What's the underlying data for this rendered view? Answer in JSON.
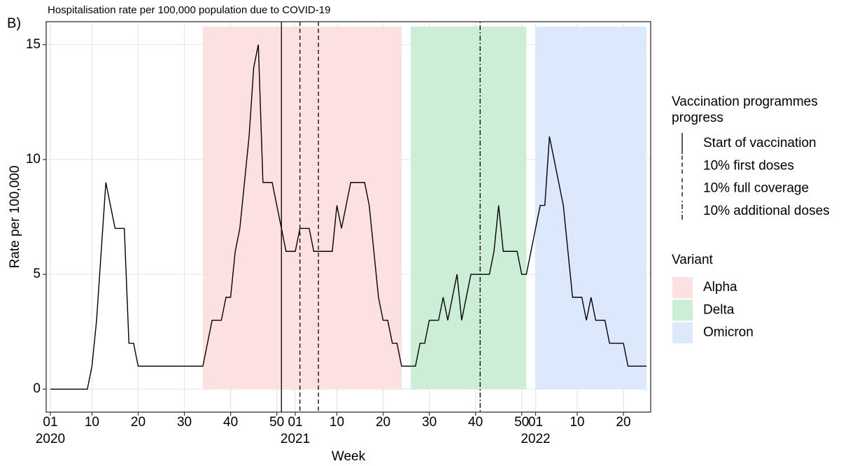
{
  "panel_label": "B)",
  "chart_data": {
    "type": "line",
    "title": "Hospitalisation rate per 100,000 population due to COVID-19",
    "x_label": "Week",
    "y_label": "Rate per 100,000",
    "color": "#000000",
    "x": [
      "2020-01",
      "2020-02",
      "2020-03",
      "2020-04",
      "2020-05",
      "2020-06",
      "2020-07",
      "2020-08",
      "2020-09",
      "2020-10",
      "2020-11",
      "2020-12",
      "2020-13",
      "2020-14",
      "2020-15",
      "2020-16",
      "2020-17",
      "2020-18",
      "2020-19",
      "2020-20",
      "2020-21",
      "2020-22",
      "2020-23",
      "2020-24",
      "2020-25",
      "2020-26",
      "2020-27",
      "2020-28",
      "2020-29",
      "2020-30",
      "2020-31",
      "2020-32",
      "2020-33",
      "2020-34",
      "2020-35",
      "2020-36",
      "2020-37",
      "2020-38",
      "2020-39",
      "2020-40",
      "2020-41",
      "2020-42",
      "2020-43",
      "2020-44",
      "2020-45",
      "2020-46",
      "2020-47",
      "2020-48",
      "2020-49",
      "2020-50",
      "2020-51",
      "2020-52",
      "2020-53",
      "2021-01",
      "2021-02",
      "2021-03",
      "2021-04",
      "2021-05",
      "2021-06",
      "2021-07",
      "2021-08",
      "2021-09",
      "2021-10",
      "2021-11",
      "2021-12",
      "2021-13",
      "2021-14",
      "2021-15",
      "2021-16",
      "2021-17",
      "2021-18",
      "2021-19",
      "2021-20",
      "2021-21",
      "2021-22",
      "2021-23",
      "2021-24",
      "2021-25",
      "2021-26",
      "2021-27",
      "2021-28",
      "2021-29",
      "2021-30",
      "2021-31",
      "2021-32",
      "2021-33",
      "2021-34",
      "2021-35",
      "2021-36",
      "2021-37",
      "2021-38",
      "2021-39",
      "2021-40",
      "2021-41",
      "2021-42",
      "2021-43",
      "2021-44",
      "2021-45",
      "2021-46",
      "2021-47",
      "2021-48",
      "2021-49",
      "2021-50",
      "2021-51",
      "2021-52",
      "2022-01",
      "2022-02",
      "2022-03",
      "2022-04",
      "2022-05",
      "2022-06",
      "2022-07",
      "2022-08",
      "2022-09",
      "2022-10",
      "2022-11",
      "2022-12",
      "2022-13",
      "2022-14",
      "2022-15",
      "2022-16",
      "2022-17",
      "2022-18",
      "2022-19",
      "2022-20",
      "2022-21",
      "2022-22",
      "2022-23",
      "2022-24",
      "2022-25"
    ],
    "values": [
      0,
      0,
      0,
      0,
      0,
      0,
      0,
      0,
      0,
      1,
      3,
      6,
      9,
      8,
      7,
      7,
      7,
      2,
      2,
      1,
      1,
      1,
      1,
      1,
      1,
      1,
      1,
      1,
      1,
      1,
      1,
      1,
      1,
      1,
      2,
      3,
      3,
      3,
      4,
      4,
      6,
      7,
      9,
      11,
      14,
      15,
      9,
      9,
      9,
      8,
      7,
      6,
      6,
      6,
      7,
      7,
      7,
      6,
      6,
      6,
      6,
      6,
      8,
      7,
      8,
      9,
      9,
      9,
      9,
      8,
      6,
      4,
      3,
      3,
      2,
      2,
      1,
      1,
      1,
      1,
      2,
      2,
      3,
      3,
      3,
      4,
      3,
      4,
      5,
      3,
      4,
      5,
      5,
      5,
      5,
      5,
      6,
      8,
      6,
      6,
      6,
      6,
      5,
      5,
      6,
      7,
      8,
      8,
      11,
      10,
      9,
      8,
      6,
      4,
      4,
      4,
      3,
      4,
      3,
      3,
      3,
      2,
      2,
      2,
      2,
      1,
      1,
      1,
      1,
      1
    ],
    "xlim": [
      "2020-01",
      "2022-25"
    ],
    "xticks": [
      {
        "value": "2020-01",
        "label": "01"
      },
      {
        "value": "2020-10",
        "label": "10"
      },
      {
        "value": "2020-20",
        "label": "20"
      },
      {
        "value": "2020-30",
        "label": "30"
      },
      {
        "value": "2020-40",
        "label": "40"
      },
      {
        "value": "2020-50",
        "label": "50"
      },
      {
        "value": "2021-01",
        "label": "01"
      },
      {
        "value": "2021-10",
        "label": "10"
      },
      {
        "value": "2021-20",
        "label": "20"
      },
      {
        "value": "2021-30",
        "label": "30"
      },
      {
        "value": "2021-40",
        "label": "40"
      },
      {
        "value": "2021-50",
        "label": "50"
      },
      {
        "value": "2022-01",
        "label": "01"
      },
      {
        "value": "2022-10",
        "label": "10"
      },
      {
        "value": "2022-20",
        "label": "20"
      }
    ],
    "xtick_years": [
      {
        "value": "2020-01",
        "label": "2020"
      },
      {
        "value": "2021-01",
        "label": "2021"
      },
      {
        "value": "2022-01",
        "label": "2022"
      }
    ],
    "ylim": [
      -1,
      16
    ],
    "yticks": [
      0,
      5,
      10,
      15
    ],
    "grid": true,
    "milestones_title": "Vaccination programmes progress",
    "milestones": [
      {
        "name": "Start of vaccination",
        "x": "2020-51",
        "linestyle": "solid"
      },
      {
        "name": "10% first doses",
        "x": "2021-02",
        "linestyle": "dashed"
      },
      {
        "name": "10% full coverage",
        "x": "2021-06",
        "linestyle": "dashed"
      },
      {
        "name": "10% additional doses",
        "x": "2021-41",
        "linestyle": "dotdash"
      }
    ],
    "variants_title": "Variant",
    "variants": [
      {
        "name": "Alpha",
        "start": "2020-34",
        "end": "2021-24",
        "color": "#fde0e0"
      },
      {
        "name": "Delta",
        "start": "2021-26",
        "end": "2021-51",
        "color": "#cdeed6"
      },
      {
        "name": "Omicron",
        "start": "2022-01",
        "end": "2022-25",
        "color": "#dce8fc"
      }
    ]
  }
}
